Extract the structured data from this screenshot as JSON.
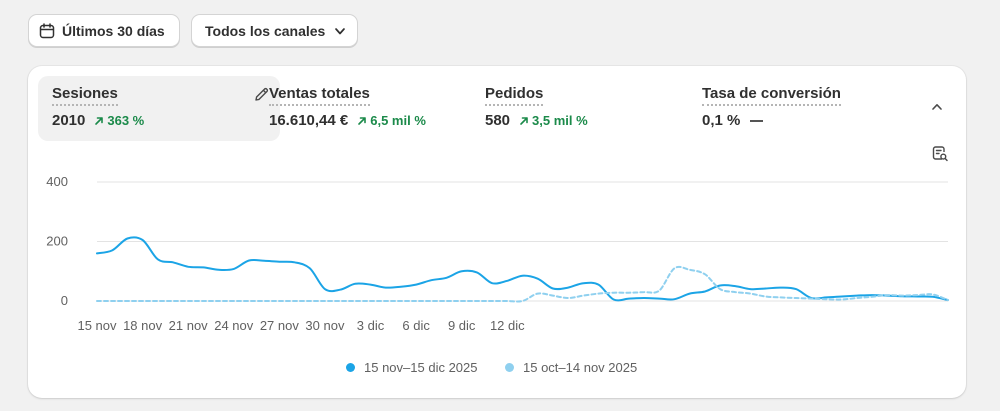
{
  "toolbar": {
    "date_label": "Últimos 30 días",
    "channels_label": "Todos los canales"
  },
  "metrics": [
    {
      "label": "Sesiones",
      "value": "2010",
      "change": "363 %",
      "trend": "up"
    },
    {
      "label": "Ventas totales",
      "value": "16.610,44 €",
      "change": "6,5 mil %",
      "trend": "up"
    },
    {
      "label": "Pedidos",
      "value": "580",
      "change": "3,5 mil %",
      "trend": "up"
    },
    {
      "label": "Tasa de conversión",
      "value": "0,1 %",
      "change": "",
      "trend": "none"
    }
  ],
  "colors": {
    "current": "#1ba4e6",
    "previous": "#8fd0ef",
    "positive": "#1b8a4a"
  },
  "icons": [
    "calendar-icon",
    "chevron-down-icon",
    "pencil-icon",
    "chevron-up-icon",
    "chart-options-icon",
    "trend-up-icon"
  ],
  "chart_data": {
    "type": "line",
    "x_ticks": [
      "15 nov",
      "18 nov",
      "21 nov",
      "24 nov",
      "27 nov",
      "30 nov",
      "3 dic",
      "6 dic",
      "9 dic",
      "12 dic"
    ],
    "y_ticks": [
      "400",
      "200",
      "0"
    ],
    "ylim": [
      0,
      400
    ],
    "grid": true,
    "legend_position": "bottom",
    "series": [
      {
        "name": "15 nov–15 dic 2025",
        "style": "solid",
        "values": [
          160,
          170,
          210,
          205,
          140,
          130,
          115,
          113,
          105,
          108,
          136,
          135,
          132,
          130,
          110,
          40,
          38,
          58,
          55,
          45,
          48,
          55,
          70,
          78,
          100,
          96,
          60,
          68,
          85,
          75,
          42,
          45,
          60,
          55,
          5,
          8,
          10,
          8,
          6,
          25,
          32,
          52,
          50,
          40,
          42,
          45,
          40,
          10,
          12,
          15,
          18,
          20,
          18,
          16,
          15,
          14,
          3
        ]
      },
      {
        "name": "15 oct–14 nov 2025",
        "style": "dashed",
        "values": [
          0,
          0,
          0,
          0,
          0,
          0,
          0,
          0,
          0,
          0,
          0,
          0,
          0,
          0,
          0,
          0,
          0,
          0,
          0,
          0,
          0,
          0,
          0,
          0,
          0,
          0,
          0,
          0,
          0,
          25,
          18,
          10,
          18,
          25,
          28,
          28,
          30,
          35,
          110,
          105,
          90,
          40,
          30,
          25,
          15,
          12,
          10,
          8,
          6,
          5,
          10,
          14,
          20,
          18,
          20,
          22,
          3
        ]
      }
    ]
  }
}
